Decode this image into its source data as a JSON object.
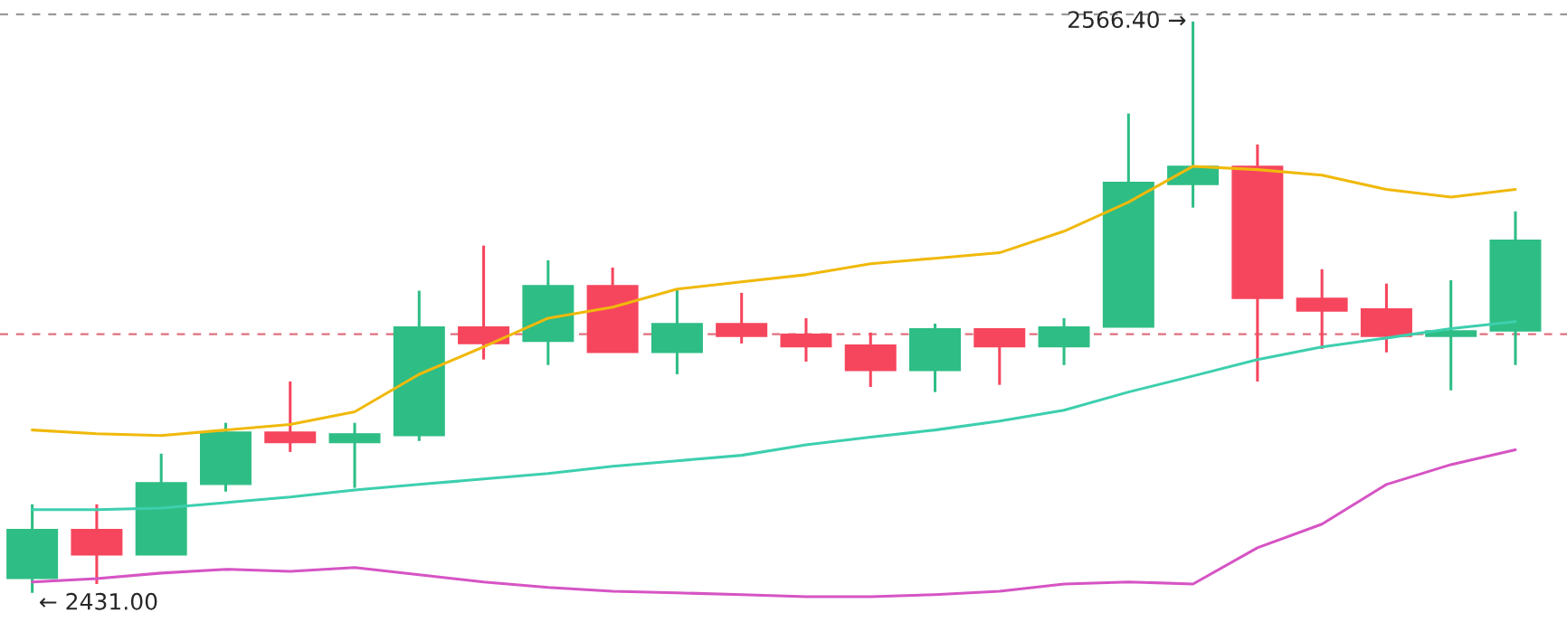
{
  "chart_data": {
    "type": "candlestick",
    "categories": [
      null,
      null,
      null,
      null,
      null,
      null,
      null,
      null,
      null,
      null,
      null,
      null,
      null,
      null,
      null,
      null,
      null,
      null,
      null,
      null,
      null,
      null,
      null,
      null
    ],
    "ohlc": [
      [
        2434.4,
        2452.0,
        2431.0,
        2446.0
      ],
      [
        2446.0,
        2452.0,
        2433.1,
        2440.0
      ],
      [
        2440.0,
        2464.0,
        2440.0,
        2457.1
      ],
      [
        2456.7,
        2471.3,
        2455.0,
        2469.1
      ],
      [
        2469.1,
        2481.1,
        2464.4,
        2466.6
      ],
      [
        2466.6,
        2471.3,
        2455.9,
        2468.7
      ],
      [
        2468.3,
        2502.6,
        2467.0,
        2494.0
      ],
      [
        2494.0,
        2513.3,
        2486.3,
        2490.1
      ],
      [
        2490.6,
        2509.8,
        2485.0,
        2503.8
      ],
      [
        2503.8,
        2508.1,
        2488.0,
        2488.0
      ],
      [
        2488.0,
        2503.0,
        2482.8,
        2494.8
      ],
      [
        2494.8,
        2502.1,
        2490.1,
        2491.8
      ],
      [
        2492.3,
        2496.1,
        2485.8,
        2489.3
      ],
      [
        2489.7,
        2492.7,
        2479.8,
        2483.7
      ],
      [
        2483.7,
        2494.8,
        2478.6,
        2493.6
      ],
      [
        2493.6,
        2493.6,
        2480.3,
        2489.3
      ],
      [
        2489.3,
        2496.1,
        2485.0,
        2494.0
      ],
      [
        2494.0,
        2544.6,
        2494.0,
        2528.3
      ],
      [
        2527.8,
        2566.4,
        2522.3,
        2532.1
      ],
      [
        2532.1,
        2537.3,
        2481.1,
        2500.8
      ],
      [
        2500.8,
        2507.7,
        2488.8,
        2497.8
      ],
      [
        2498.3,
        2504.3,
        2488.0,
        2491.8
      ],
      [
        2491.8,
        2505.1,
        2479.0,
        2493.1
      ],
      [
        2493.1,
        2521.4,
        2485.0,
        2514.6
      ]
    ],
    "colors": [
      "#2ebd85",
      "#f6465d",
      "#2ebd85",
      "#2ebd85",
      "#f6465d",
      "#2ebd85",
      "#2ebd85",
      "#f6465d",
      "#2ebd85",
      "#f6465d",
      "#2ebd85",
      "#f6465d",
      "#f6465d",
      "#f6465d",
      "#2ebd85",
      "#f6465d",
      "#2ebd85",
      "#2ebd85",
      "#2ebd85",
      "#f6465d",
      "#f6465d",
      "#f6465d",
      "#2ebd85",
      "#2ebd85"
    ],
    "series": [
      {
        "type": "line",
        "color": "#f0b90b",
        "values": [
          2469.6,
          2468.7,
          2468.3,
          2469.6,
          2470.9,
          2473.9,
          2482.8,
          2489.3,
          2496.1,
          2498.7,
          2503.0,
          2504.7,
          2506.4,
          2509.0,
          2510.3,
          2511.6,
          2516.7,
          2523.6,
          2532.1,
          2531.3,
          2530.0,
          2526.6,
          2524.8,
          2526.6
        ]
      },
      {
        "type": "line",
        "color": "#3dcfae",
        "values": [
          2450.7,
          2450.7,
          2451.1,
          2452.4,
          2453.7,
          2455.4,
          2456.7,
          2458.0,
          2459.3,
          2461.0,
          2462.3,
          2463.6,
          2466.1,
          2467.9,
          2469.6,
          2471.7,
          2474.3,
          2478.6,
          2482.4,
          2486.3,
          2489.3,
          2491.4,
          2493.6,
          2495.3
        ]
      },
      {
        "type": "line",
        "color": "#d654c4",
        "values": [
          2433.6,
          2434.4,
          2435.7,
          2436.6,
          2436.1,
          2437.0,
          2435.3,
          2433.6,
          2432.3,
          2431.4,
          2431.0,
          2430.6,
          2430.1,
          2430.1,
          2430.6,
          2431.4,
          2433.1,
          2433.6,
          2433.1,
          2441.7,
          2447.3,
          2456.7,
          2461.4,
          2464.9
        ]
      }
    ],
    "ref_lines": [
      {
        "axis": "y",
        "value": 2492.3,
        "color": "#e0707e",
        "line_style": "dashed"
      },
      {
        "axis": "y",
        "value": 2568.1,
        "color": "#999999",
        "line_style": "dashed"
      }
    ],
    "annotations": [
      {
        "text": "2566.40 →",
        "y": 2566.4
      },
      {
        "text": "← 2431.00",
        "y": 2431.0
      }
    ],
    "ylim": [
      2424.1,
      2571.5
    ],
    "grid": false,
    "legend": false
  }
}
